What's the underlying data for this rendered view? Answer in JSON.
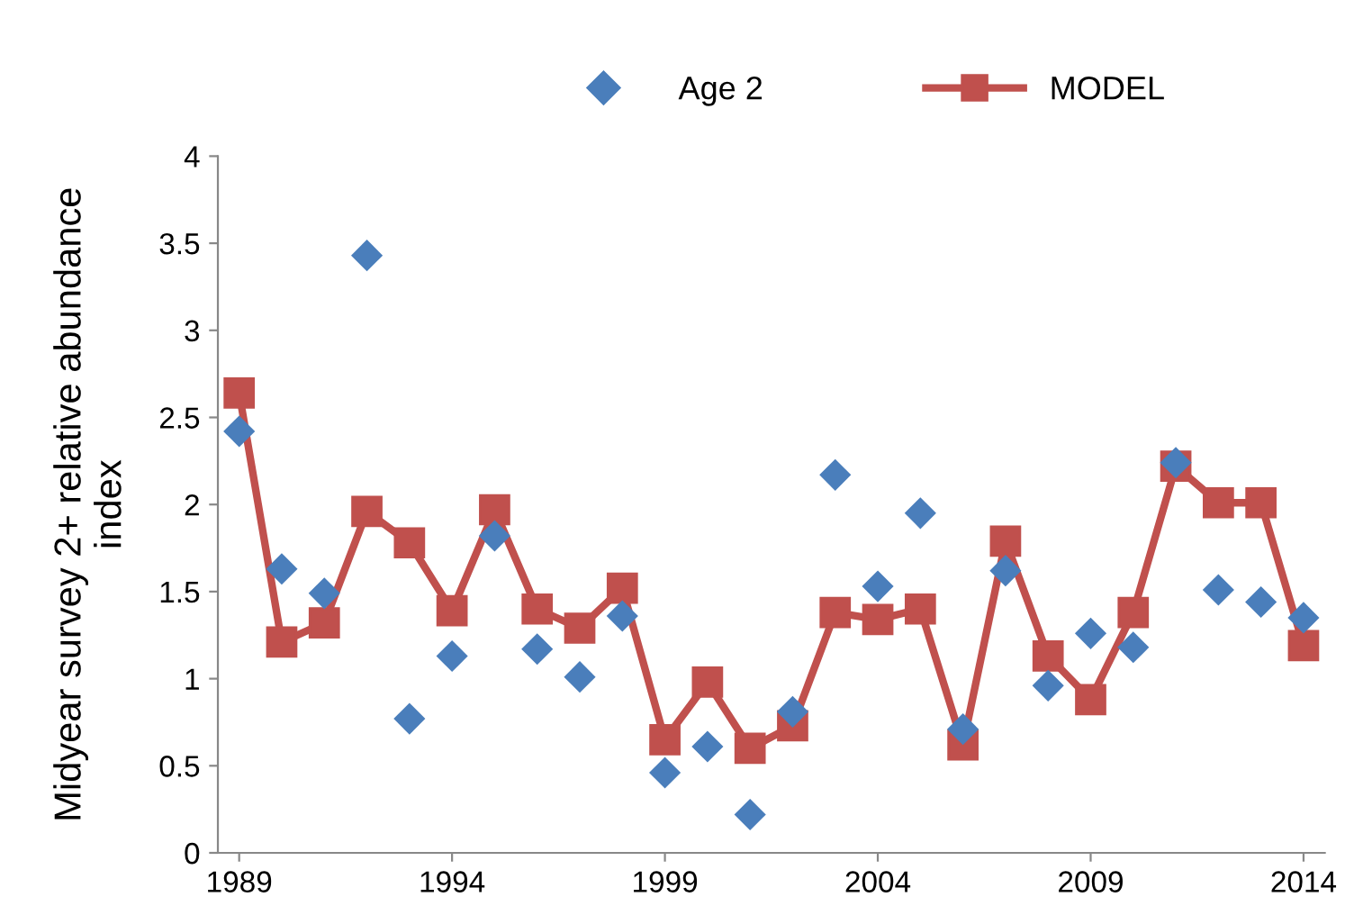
{
  "chart_data": {
    "type": "line",
    "ylabel": "Midyear survey 2+ relative abundance\nindex",
    "x": [
      1989,
      1990,
      1991,
      1992,
      1993,
      1994,
      1995,
      1996,
      1997,
      1998,
      1999,
      2000,
      2001,
      2002,
      2003,
      2004,
      2005,
      2006,
      2007,
      2008,
      2009,
      2010,
      2011,
      2012,
      2013,
      2014
    ],
    "series": [
      {
        "name": "Age 2",
        "type": "scatter",
        "marker": "diamond",
        "color": "#4a7ebb",
        "values": [
          2.42,
          1.63,
          1.49,
          3.43,
          0.77,
          1.13,
          1.82,
          1.17,
          1.01,
          1.36,
          0.46,
          0.61,
          0.22,
          0.81,
          2.17,
          1.53,
          1.95,
          0.71,
          1.62,
          0.96,
          1.26,
          1.18,
          2.24,
          1.51,
          1.44,
          1.35
        ]
      },
      {
        "name": "MODEL",
        "marker": "square",
        "color": "#c0504d",
        "values": [
          2.64,
          1.21,
          1.32,
          1.96,
          1.78,
          1.39,
          1.97,
          1.4,
          1.29,
          1.52,
          0.65,
          0.98,
          0.6,
          0.73,
          1.38,
          1.34,
          1.4,
          0.62,
          1.79,
          1.13,
          0.88,
          1.38,
          2.22,
          2.01,
          2.01,
          1.19
        ]
      }
    ],
    "xlim": [
      1988.5,
      2014.5
    ],
    "xticks": [
      1989,
      1994,
      1999,
      2004,
      2009,
      2014
    ],
    "ylim": [
      0,
      4
    ],
    "yticks": [
      0,
      0.5,
      1,
      1.5,
      2,
      2.5,
      3,
      3.5,
      4
    ],
    "grid": false,
    "legend": "top"
  }
}
